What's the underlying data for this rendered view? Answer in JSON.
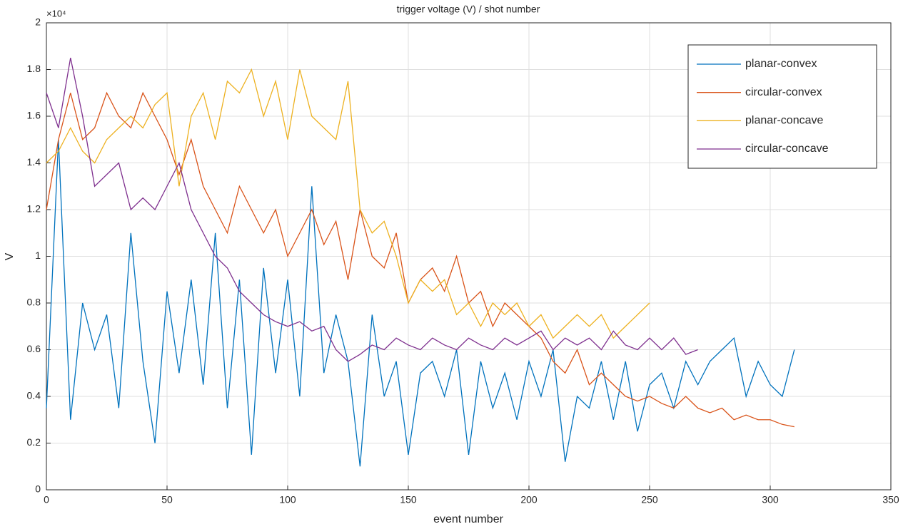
{
  "chart_data": {
    "type": "line",
    "title": "trigger voltage (V) / shot number",
    "x_label": "event number",
    "y_label": "V",
    "y_scale_label": "×10⁴",
    "x": [
      0,
      5,
      10,
      15,
      20,
      25,
      30,
      35,
      40,
      45,
      50,
      55,
      60,
      65,
      70,
      75,
      80,
      85,
      90,
      95,
      100,
      105,
      110,
      115,
      120,
      125,
      130,
      135,
      140,
      145,
      150,
      155,
      160,
      165,
      170,
      175,
      180,
      185,
      190,
      195,
      200,
      205,
      210,
      215,
      220,
      225,
      230,
      235,
      240,
      245,
      250,
      255,
      260,
      265,
      270,
      275,
      280,
      285,
      290,
      295,
      300,
      305,
      310
    ],
    "series": [
      {
        "name": "planar-convex",
        "color": "#0072BD",
        "values": [
          0.35,
          1.5,
          0.3,
          0.8,
          0.6,
          0.75,
          0.35,
          1.1,
          0.55,
          0.2,
          0.85,
          0.5,
          0.9,
          0.45,
          1.1,
          0.35,
          0.9,
          0.15,
          0.95,
          0.5,
          0.9,
          0.4,
          1.3,
          0.5,
          0.75,
          0.55,
          0.1,
          0.75,
          0.4,
          0.55,
          0.15,
          0.5,
          0.55,
          0.4,
          0.6,
          0.15,
          0.55,
          0.35,
          0.5,
          0.3,
          0.55,
          0.4,
          0.6,
          0.12,
          0.4,
          0.35,
          0.55,
          0.3,
          0.55,
          0.25,
          0.45,
          0.5,
          0.35,
          0.55,
          0.45,
          0.55,
          0.6,
          0.65,
          0.4,
          0.55,
          0.45,
          0.4,
          0.6
        ]
      },
      {
        "name": "circular-convex",
        "color": "#D95319",
        "values": [
          1.2,
          1.5,
          1.7,
          1.5,
          1.55,
          1.7,
          1.6,
          1.55,
          1.7,
          1.6,
          1.5,
          1.35,
          1.5,
          1.3,
          1.2,
          1.1,
          1.3,
          1.2,
          1.1,
          1.2,
          1.0,
          1.1,
          1.2,
          1.05,
          1.15,
          0.9,
          1.2,
          1.0,
          0.95,
          1.1,
          0.8,
          0.9,
          0.95,
          0.85,
          1.0,
          0.8,
          0.85,
          0.7,
          0.8,
          0.75,
          0.7,
          0.65,
          0.55,
          0.5,
          0.6,
          0.45,
          0.5,
          0.45,
          0.4,
          0.38,
          0.4,
          0.37,
          0.35,
          0.4,
          0.35,
          0.33,
          0.35,
          0.3,
          0.32,
          0.3,
          0.3,
          0.28,
          0.27
        ]
      },
      {
        "name": "planar-concave",
        "color": "#EDB120",
        "values": [
          1.4,
          1.45,
          1.55,
          1.45,
          1.4,
          1.5,
          1.55,
          1.6,
          1.55,
          1.65,
          1.7,
          1.3,
          1.6,
          1.7,
          1.5,
          1.75,
          1.7,
          1.8,
          1.6,
          1.75,
          1.5,
          1.8,
          1.6,
          1.55,
          1.5,
          1.75,
          1.2,
          1.1,
          1.15,
          1.0,
          0.8,
          0.9,
          0.85,
          0.9,
          0.75,
          0.8,
          0.7,
          0.8,
          0.75,
          0.8,
          0.7,
          0.75,
          0.65,
          0.7,
          0.75,
          0.7,
          0.75,
          0.65,
          0.7,
          0.75,
          0.8,
          null,
          null,
          null,
          null,
          null,
          null,
          null,
          null,
          null,
          null,
          null,
          null
        ]
      },
      {
        "name": "circular-concave",
        "color": "#7E2F8E",
        "values": [
          1.7,
          1.55,
          1.85,
          1.6,
          1.3,
          1.35,
          1.4,
          1.2,
          1.25,
          1.2,
          1.3,
          1.4,
          1.2,
          1.1,
          1.0,
          0.95,
          0.85,
          0.8,
          0.75,
          0.72,
          0.7,
          0.72,
          0.68,
          0.7,
          0.6,
          0.55,
          0.58,
          0.62,
          0.6,
          0.65,
          0.62,
          0.6,
          0.65,
          0.62,
          0.6,
          0.65,
          0.62,
          0.6,
          0.65,
          0.62,
          0.65,
          0.68,
          0.6,
          0.65,
          0.62,
          0.65,
          0.6,
          0.68,
          0.62,
          0.6,
          0.65,
          0.6,
          0.65,
          0.58,
          0.6,
          null,
          null,
          null,
          null,
          null,
          null,
          null,
          null
        ]
      }
    ],
    "xlim": [
      0,
      350
    ],
    "xticks": [
      0,
      50,
      100,
      150,
      200,
      250,
      300,
      350
    ],
    "ylim": [
      0,
      2
    ],
    "yticks": [
      0,
      0.2,
      0.4,
      0.6,
      0.8,
      1,
      1.2,
      1.4,
      1.6,
      1.8,
      2
    ],
    "grid": true,
    "legend": "upper right"
  }
}
